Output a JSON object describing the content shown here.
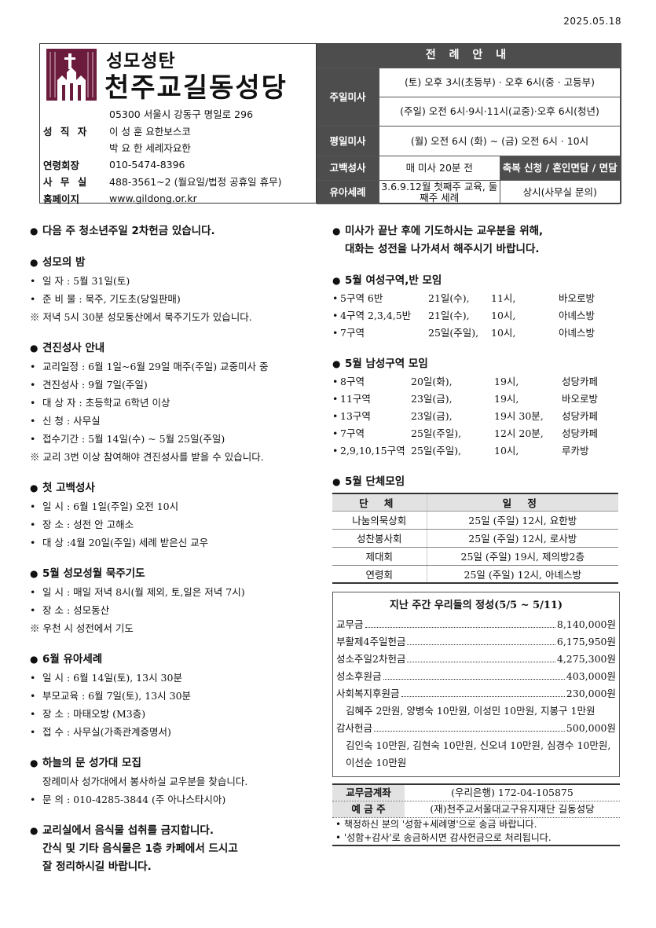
{
  "date": "2025.05.18",
  "header": {
    "subtitle": "성모성탄",
    "title": "천주교길동성당",
    "address": "05300 서울시 강동구 명일로 296",
    "info": [
      {
        "label": "성 직 자",
        "value": "이 성 훈 요한보스코"
      },
      {
        "label": "",
        "value": "박 요 한 세례자요한"
      },
      {
        "label": "연령회장",
        "value": "010-5474-8396"
      },
      {
        "label": "사 무 실",
        "value": "488-3561~2 (월요일/법정 공휴일 휴무)"
      },
      {
        "label": "홈페이지",
        "value": "www.gildong.or.kr"
      }
    ],
    "logo_color": "#6b1c3c"
  },
  "liturgy": {
    "title": "전 례 안 내",
    "sunday_label": "주일미사",
    "sunday_sat": "(토) 오후 3시(초등부) · 오후 6시(중 · 고등부)",
    "sunday_sun": "(주일) 오전 6시·9시·11시(교중)·오후 6시(청년)",
    "weekday_label": "평일미사",
    "weekday": "(월) 오전 6시  (화) ~ (금) 오전 6시 ·  10시",
    "confession_label": "고백성사",
    "confession": "매 미사 20분 전",
    "blessing": "축복 신청 / 혼인면담 / 면담",
    "infant_label": "유아세례",
    "infant": "3.6.9.12월 첫째주 교육, 둘째주 세례",
    "anytime": "상시(사무실 문의)"
  },
  "left": {
    "notice1": "다음 주 청소년주일 2차헌금 있습니다.",
    "rosary_night": {
      "title": "성모의 밤",
      "items": [
        "일     자 : 5월 31일(토)",
        "준 비 물 : 묵주, 기도초(당일판매)"
      ],
      "note": "※ 저녁 5시 30분 성모동산에서 묵주기도가 있습니다."
    },
    "confirmation": {
      "title": "견진성사 안내",
      "items": [
        "교리일정 : 6월 1일~6월 29일 매주(주일) 교중미사 중",
        "견진성사 : 9월 7일(주일)",
        "대 상 자 : 초등학교 6학년 이상",
        "신     청 : 사무실",
        "접수기간 : 5월 14일(수) ~ 5월 25일(주일)"
      ],
      "note": "※ 교리 3번 이상 참여해야 견진성사를 받을 수 있습니다."
    },
    "first_confession": {
      "title": "첫 고백성사",
      "items": [
        "일     시 : 6월 1일(주일) 오전 10시",
        "장     소 : 성전 안 고해소",
        "대     상 :4월 20일(주일)  세례 받은신 교우"
      ]
    },
    "rosary_may": {
      "title": "5월 성모성월 묵주기도",
      "items": [
        "일     시 : 매일 저녁 8시(월 제외, 토,일은 저녁 7시)",
        "장     소 : 성모동산"
      ],
      "note": "※ 우천 시 성전에서 기도"
    },
    "infant_baptism": {
      "title": "6월 유아세례",
      "items": [
        "일     시 : 6월 14일(토), 13시 30분",
        "부모교육 : 6월 7일(토), 13시 30분",
        "장     소 : 마태오방 (M3층)",
        "접     수 : 사무실(가족관계증명서)"
      ]
    },
    "choir": {
      "title": "하늘의 문 성가대 모집",
      "text": "장례미사 성가대에서 봉사하실 교우분을 찾습니다.",
      "items": [
        "문     의 : 010-4285-3844 (주 아나스타시아)"
      ]
    },
    "food": [
      "교리실에서 음식물 섭취를 금지합니다.",
      "간식 및 기타 음식물은 1층 카페에서 드시고",
      "잘 정리하시길 바랍니다."
    ]
  },
  "right": {
    "notice": [
      "미사가 끝난 후에 기도하시는 교우분을 위해,",
      "대화는 성전을 나가셔서 해주시기 바랍니다."
    ],
    "women": {
      "title": "5월 여성구역,반 모임",
      "rows": [
        [
          "5구역 6반",
          "21일(수),",
          "11시,",
          "바오로방"
        ],
        [
          "4구역 2,3,4,5반",
          "21일(수),",
          "10시,",
          "아녜스방"
        ],
        [
          "7구역",
          "25일(주일),",
          "10시,",
          "아녜스방"
        ]
      ]
    },
    "men": {
      "title": "5월 남성구역 모임",
      "rows": [
        [
          "8구역",
          "20일(화),",
          "19시,",
          "성당카페"
        ],
        [
          "11구역",
          "23일(금),",
          "19시,",
          "바오로방"
        ],
        [
          "13구역",
          "23일(금),",
          "19시 30분,",
          "성당카페"
        ],
        [
          "7구역",
          "25일(주일),",
          "12시 20분,",
          "성당카페"
        ],
        [
          "2,9,10,15구역",
          "25일(주일),",
          "10시,",
          "루카방"
        ]
      ]
    },
    "groups": {
      "title": "5월 단체모임",
      "headers": [
        "단 체",
        "일 정"
      ],
      "rows": [
        [
          "나눔의묵상회",
          "25일 (주일) 12시, 요한방"
        ],
        [
          "성찬봉사회",
          "25일 (주일) 12시, 로사방"
        ],
        [
          "제대회",
          "25일 (주일) 19시, 제의방2층"
        ],
        [
          "연령회",
          "25일 (주일) 12시, 아녜스방"
        ]
      ]
    },
    "offering": {
      "title": "지난 주간 우리들의 정성(5/5 ~ 5/11)",
      "rows": [
        {
          "label": "교무금",
          "amount": "8,140,000원"
        },
        {
          "label": "부활제4주일헌금",
          "amount": "6,175,950원"
        },
        {
          "label": "성소주일2차헌금",
          "amount": "4,275,300원"
        },
        {
          "label": "성소후원금",
          "amount": "403,000원"
        },
        {
          "label": "사회복지후원금",
          "amount": "230,000원",
          "names": "김혜주 2만원, 양병숙 10만원, 이성민 10만원, 지봉구 1만원"
        },
        {
          "label": "감사헌금",
          "amount": "500,000원",
          "names": "김인숙 10만원, 김현숙 10만원, 신오녀 10만원, 심경수 10만원, 이선순 10만원"
        }
      ]
    },
    "account": {
      "rows": [
        {
          "label": "교무금계좌",
          "value": "(우리은행) 172-04-105875"
        },
        {
          "label": "예 금 주",
          "value": "(재)천주교서울대교구유지재단 길동성당"
        }
      ],
      "notes": [
        "• 책정하신 분의 '성함+세례명'으로 송금 바랍니다.",
        "• '성함+감사'로 송금하시면 감사헌금으로 처리됩니다."
      ]
    }
  }
}
